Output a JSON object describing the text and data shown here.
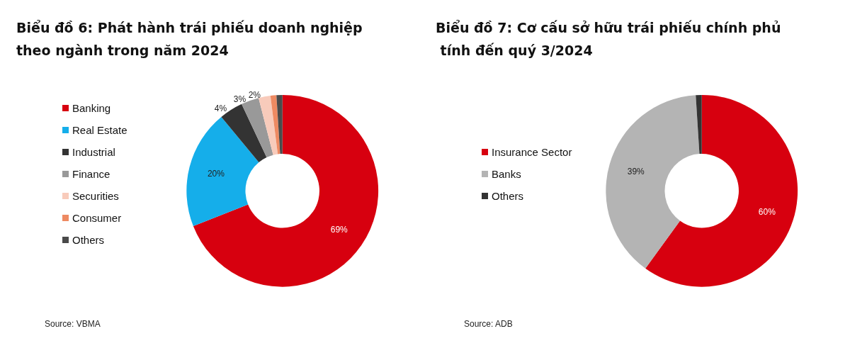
{
  "chart_data": [
    {
      "type": "donut",
      "title": "Biểu đồ 6: Phát hành trái phiếu doanh nghiệp theo ngành trong năm 2024",
      "categories": [
        "Banking",
        "Real Estate",
        "Industrial",
        "Finance",
        "Securities",
        "Consumer",
        "Others"
      ],
      "values": [
        69,
        20,
        4,
        3,
        2,
        1,
        1
      ],
      "colors": [
        "#d7000f",
        "#15aeea",
        "#333333",
        "#999999",
        "#f8cbbb",
        "#ee8a62",
        "#4a4a4a"
      ],
      "value_labels": [
        "69%",
        "20%",
        "4%",
        "3%",
        "2%",
        null,
        null
      ],
      "legend": "left",
      "annotations": [
        "Source: VBMA"
      ]
    },
    {
      "type": "donut",
      "title": "Biểu đồ 7: Cơ cấu sở hữu trái phiếu chính phủ tính đến quý 3/2024",
      "categories": [
        "Insurance Sector",
        "Banks",
        "Others"
      ],
      "values": [
        60,
        39,
        1
      ],
      "colors": [
        "#d7000f",
        "#b4b4b4",
        "#333333"
      ],
      "value_labels": [
        "60%",
        "39%",
        null
      ],
      "legend": "left",
      "annotations": [
        "Source: ADB"
      ]
    }
  ]
}
